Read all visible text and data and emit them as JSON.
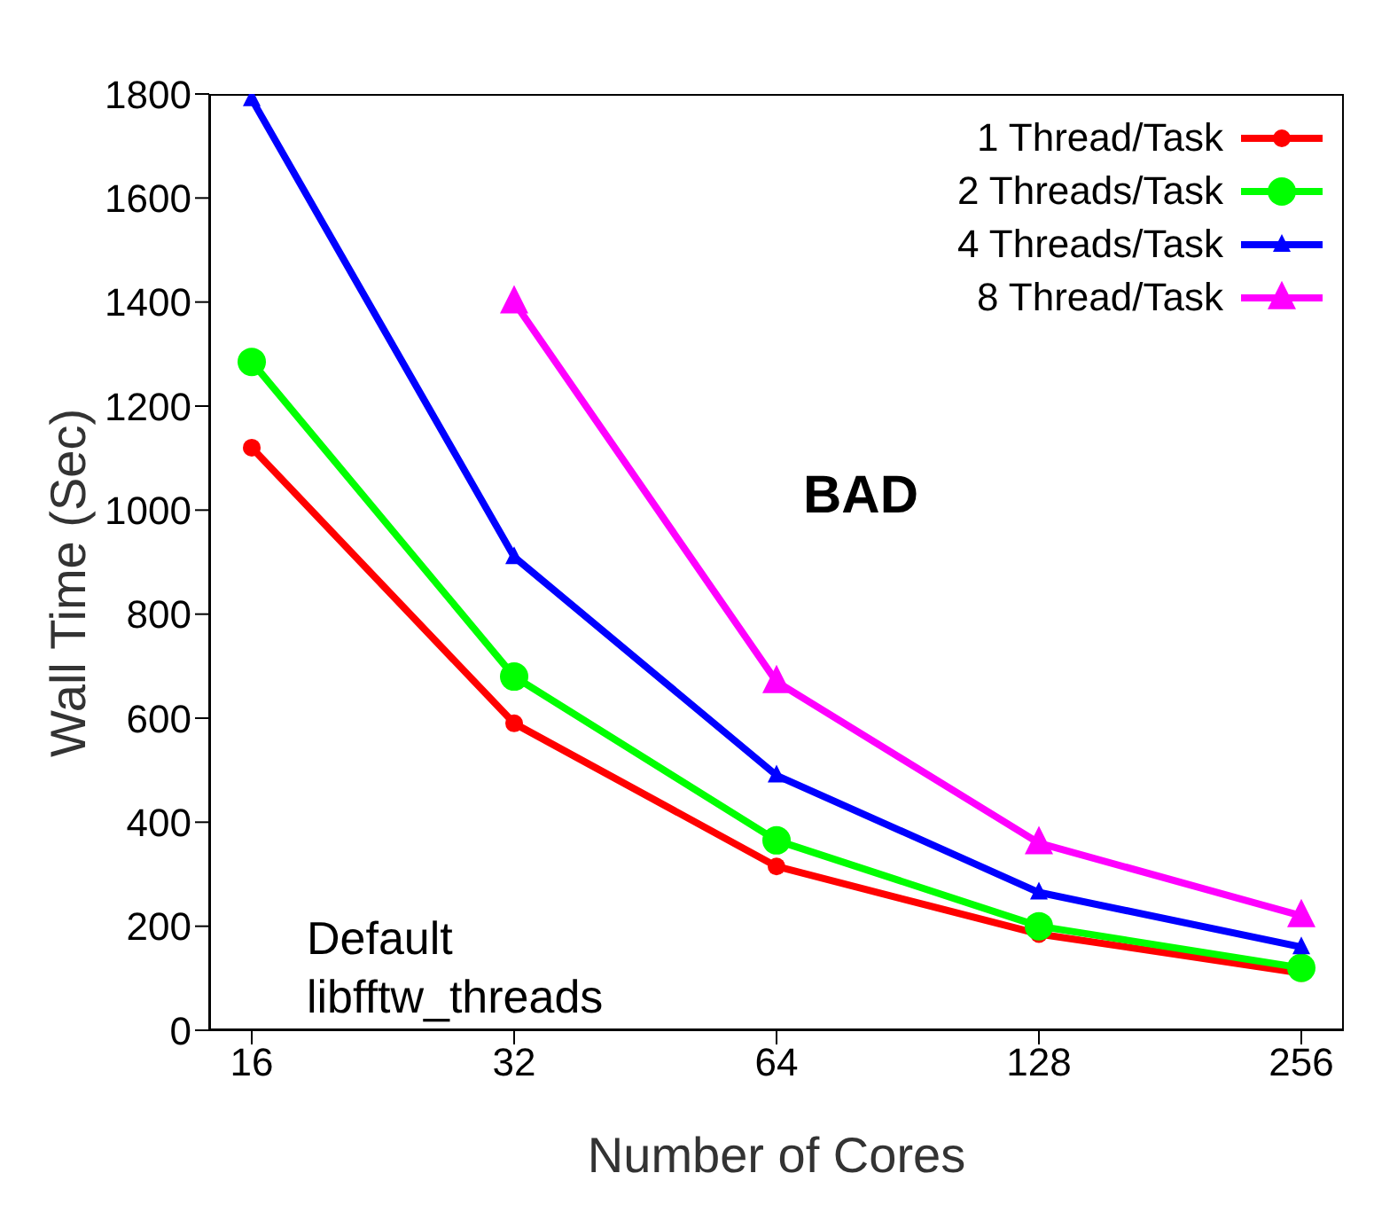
{
  "chart_data": {
    "type": "line",
    "xlabel": "Number of Cores",
    "ylabel": "Wall Time (Sec)",
    "categories": [
      "16",
      "32",
      "64",
      "128",
      "256"
    ],
    "series": [
      {
        "name": "1 Thread/Task",
        "color": "#ff0000",
        "marker": "circle",
        "values": [
          1120,
          590,
          315,
          185,
          110
        ]
      },
      {
        "name": "2 Threads/Task",
        "color": "#00ff00",
        "marker": "circle",
        "values": [
          1285,
          680,
          365,
          200,
          120
        ]
      },
      {
        "name": "4 Threads/Task",
        "color": "#0000ff",
        "marker": "triangle",
        "values": [
          1790,
          910,
          490,
          265,
          160
        ]
      },
      {
        "name": "8 Thread/Task",
        "color": "#ff00ff",
        "marker": "triangle",
        "values": [
          null,
          1400,
          670,
          360,
          220
        ]
      }
    ],
    "ylim": [
      0,
      1800
    ],
    "yticks": [
      0,
      200,
      400,
      600,
      800,
      1000,
      1200,
      1400,
      1600,
      1800
    ],
    "grid": false,
    "legend": "top right",
    "annotations": [
      "BAD",
      "Default libfftw_threads"
    ]
  }
}
